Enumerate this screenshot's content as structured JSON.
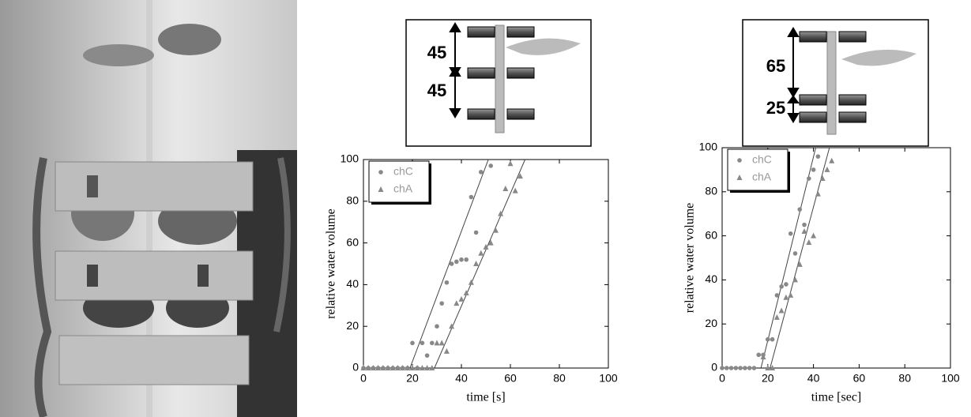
{
  "chart_data": [
    {
      "type": "scatter",
      "xlabel": "time [s]",
      "ylabel": "relative water volume",
      "xlim": [
        0,
        100
      ],
      "ylim": [
        0,
        100
      ],
      "xticks": [
        0,
        20,
        40,
        60,
        80,
        100
      ],
      "yticks": [
        0,
        20,
        40,
        60,
        80,
        100
      ],
      "annotations": [
        "45",
        "45"
      ],
      "series": [
        {
          "name": "chC",
          "color": "#888888",
          "marker": "circle",
          "x": [
            0,
            2,
            4,
            6,
            8,
            10,
            12,
            14,
            16,
            18,
            20,
            22,
            24,
            26,
            28,
            30,
            32,
            34,
            36,
            38,
            40,
            42,
            44,
            46,
            48,
            52
          ],
          "values": [
            0,
            0,
            0,
            0,
            0,
            0,
            0,
            0,
            0,
            0,
            12,
            0,
            12,
            6,
            12,
            20,
            31,
            41,
            50,
            51,
            52,
            52,
            82,
            65,
            94,
            97
          ]
        },
        {
          "name": "chA",
          "color": "#888888",
          "marker": "triangle",
          "x": [
            0,
            2,
            4,
            6,
            8,
            10,
            12,
            14,
            16,
            18,
            20,
            22,
            24,
            26,
            28,
            30,
            32,
            34,
            36,
            38,
            40,
            42,
            44,
            46,
            48,
            50,
            52,
            54,
            56,
            58,
            60,
            62,
            64
          ],
          "values": [
            0,
            0,
            0,
            0,
            0,
            0,
            0,
            0,
            0,
            0,
            0,
            0,
            0,
            0,
            0,
            12,
            12,
            8,
            20,
            31,
            33,
            36,
            41,
            50,
            55,
            58,
            60,
            66,
            74,
            86,
            98,
            85,
            92
          ]
        }
      ],
      "fit_lines": [
        {
          "x": [
            19,
            51
          ],
          "values": [
            0,
            100
          ]
        },
        {
          "x": [
            29,
            66
          ],
          "values": [
            0,
            100
          ]
        }
      ]
    },
    {
      "type": "scatter",
      "xlabel": "time [sec]",
      "ylabel": "relative water volume",
      "xlim": [
        0,
        100
      ],
      "ylim": [
        0,
        100
      ],
      "xticks": [
        0,
        20,
        40,
        60,
        80,
        100
      ],
      "yticks": [
        0,
        20,
        40,
        60,
        80,
        100
      ],
      "annotations": [
        "65",
        "25"
      ],
      "series": [
        {
          "name": "chC",
          "color": "#888888",
          "marker": "circle",
          "x": [
            0,
            2,
            4,
            6,
            8,
            10,
            12,
            14,
            16,
            18,
            20,
            22,
            24,
            26,
            28,
            30,
            32,
            34,
            36,
            38,
            40,
            42
          ],
          "values": [
            0,
            0,
            0,
            0,
            0,
            0,
            0,
            0,
            6,
            6,
            13,
            13,
            33,
            37,
            38,
            61,
            52,
            72,
            65,
            86,
            90,
            96
          ]
        },
        {
          "name": "chA",
          "color": "#888888",
          "marker": "triangle",
          "x": [
            18,
            20,
            22,
            24,
            26,
            28,
            30,
            32,
            34,
            36,
            38,
            40,
            42,
            44,
            46,
            48
          ],
          "values": [
            5,
            0,
            0,
            23,
            26,
            32,
            33,
            40,
            47,
            62,
            57,
            60,
            79,
            86,
            90,
            94
          ]
        }
      ],
      "fit_lines": [
        {
          "x": [
            17,
            41
          ],
          "values": [
            0,
            100
          ]
        },
        {
          "x": [
            21,
            47
          ],
          "values": [
            0,
            100
          ]
        }
      ]
    }
  ]
}
